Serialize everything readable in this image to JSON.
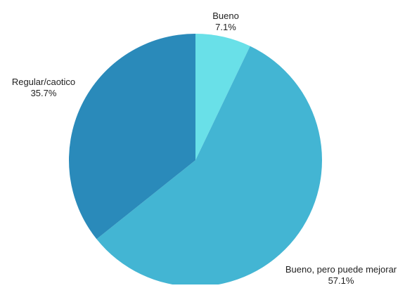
{
  "chart_data": {
    "type": "pie",
    "slices": [
      {
        "label": "Bueno",
        "value": 7.1,
        "value_label": "7.1%",
        "color": "#69E0E8"
      },
      {
        "label": "Bueno, pero puede mejorar",
        "value": 57.1,
        "value_label": "57.1%",
        "color": "#43B5D3"
      },
      {
        "label": "Regular/caotico",
        "value": 35.7,
        "value_label": "35.7%",
        "color": "#2A8ABA"
      }
    ]
  }
}
